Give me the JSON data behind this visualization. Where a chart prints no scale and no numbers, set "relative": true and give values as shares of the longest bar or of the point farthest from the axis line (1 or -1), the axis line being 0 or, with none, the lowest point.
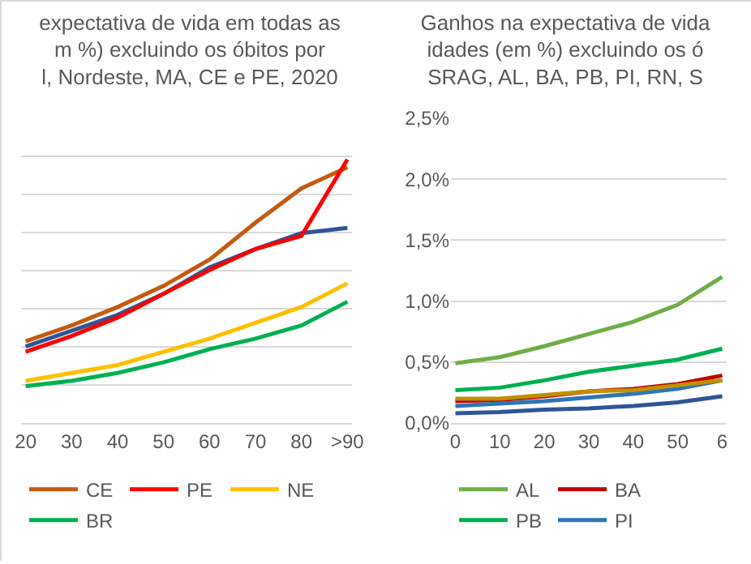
{
  "chart_data": [
    {
      "type": "line",
      "title": "expectativa de vida em todas as\nm %) excluindo os óbitos por\nl, Nordeste, MA, CE e PE, 2020",
      "relative": true,
      "grid": "y",
      "legend": "bottom",
      "categories": [
        "20",
        "30",
        "40",
        "50",
        "60",
        "70",
        "80",
        ">90"
      ],
      "series": [
        {
          "color": "#2f5597",
          "values": [
            0.29,
            0.35,
            0.41,
            0.49,
            0.59,
            0.66,
            0.72,
            0.74
          ]
        },
        {
          "name": "CE",
          "color": "#c55a11",
          "values": [
            0.31,
            0.37,
            0.44,
            0.52,
            0.62,
            0.76,
            0.89,
            0.97
          ]
        },
        {
          "name": "PE",
          "color": "#ff0000",
          "values": [
            0.27,
            0.33,
            0.4,
            0.49,
            0.58,
            0.66,
            0.71,
            1
          ]
        },
        {
          "name": "NE",
          "color": "#ffc000",
          "values": [
            0.16,
            0.19,
            0.22,
            0.27,
            0.32,
            0.38,
            0.44,
            0.53
          ]
        },
        {
          "name": "BR",
          "color": "#00b050",
          "values": [
            0.14,
            0.16,
            0.19,
            0.23,
            0.28,
            0.32,
            0.37,
            0.46
          ]
        }
      ]
    },
    {
      "type": "line",
      "title": "Ganhos na expectativa de vida\nidades (em %) excluindo os ó\nSRAG, AL, BA, PB, PI, RN, S",
      "grid": "y",
      "legend": "bottom",
      "categories": [
        "0",
        "10",
        "20",
        "30",
        "40",
        "50",
        "6"
      ],
      "ylim": [
        0,
        2.5
      ],
      "yticks": [
        {
          "value": 0,
          "label": "0,0%"
        },
        {
          "value": 0.5,
          "label": "0,5%"
        },
        {
          "value": 1,
          "label": "1,0%"
        },
        {
          "value": 1.5,
          "label": "1,5%"
        },
        {
          "value": 2,
          "label": "2,0%"
        },
        {
          "value": 2.5,
          "label": "2,5%"
        }
      ],
      "series": [
        {
          "name": "AL",
          "color": "#70ad47",
          "values": [
            0.49,
            0.54,
            0.63,
            0.73,
            0.83,
            0.97,
            1.2
          ]
        },
        {
          "name": "BA",
          "color": "#c00000",
          "values": [
            0.18,
            0.19,
            0.22,
            0.26,
            0.28,
            0.32,
            0.39
          ]
        },
        {
          "name": "PB",
          "color": "#00b050",
          "values": [
            0.27,
            0.29,
            0.35,
            0.42,
            0.47,
            0.52,
            0.61
          ]
        },
        {
          "name": "PI",
          "color": "#2e75b6",
          "values": [
            0.14,
            0.16,
            0.18,
            0.21,
            0.24,
            0.28,
            0.35
          ]
        },
        {
          "color": "#bf9000",
          "values": [
            0.2,
            0.2,
            0.23,
            0.26,
            0.27,
            0.31,
            0.35
          ]
        },
        {
          "color": "#2f5597",
          "values": [
            0.08,
            0.09,
            0.11,
            0.12,
            0.14,
            0.17,
            0.22
          ]
        }
      ]
    }
  ]
}
